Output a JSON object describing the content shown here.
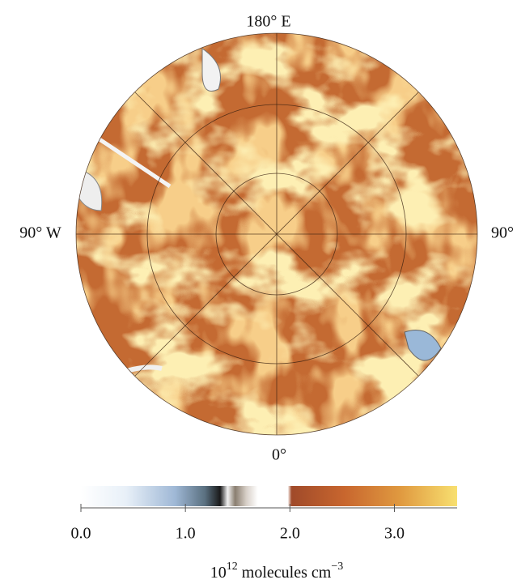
{
  "map": {
    "labels": {
      "top": "180° E",
      "left": "90° W",
      "right": "90°",
      "bottom": "0°"
    },
    "colorbar": {
      "xlim": [
        0,
        3.6
      ],
      "ticks": [
        {
          "value": 0,
          "label": "0.0"
        },
        {
          "value": 1,
          "label": "1.0"
        },
        {
          "value": 2,
          "label": "2.0"
        },
        {
          "value": 3,
          "label": "3.0"
        }
      ],
      "unit": {
        "base": "10",
        "exponent": "12",
        "text": "molecules cm",
        "unit_exponent": "−3"
      }
    }
  }
}
